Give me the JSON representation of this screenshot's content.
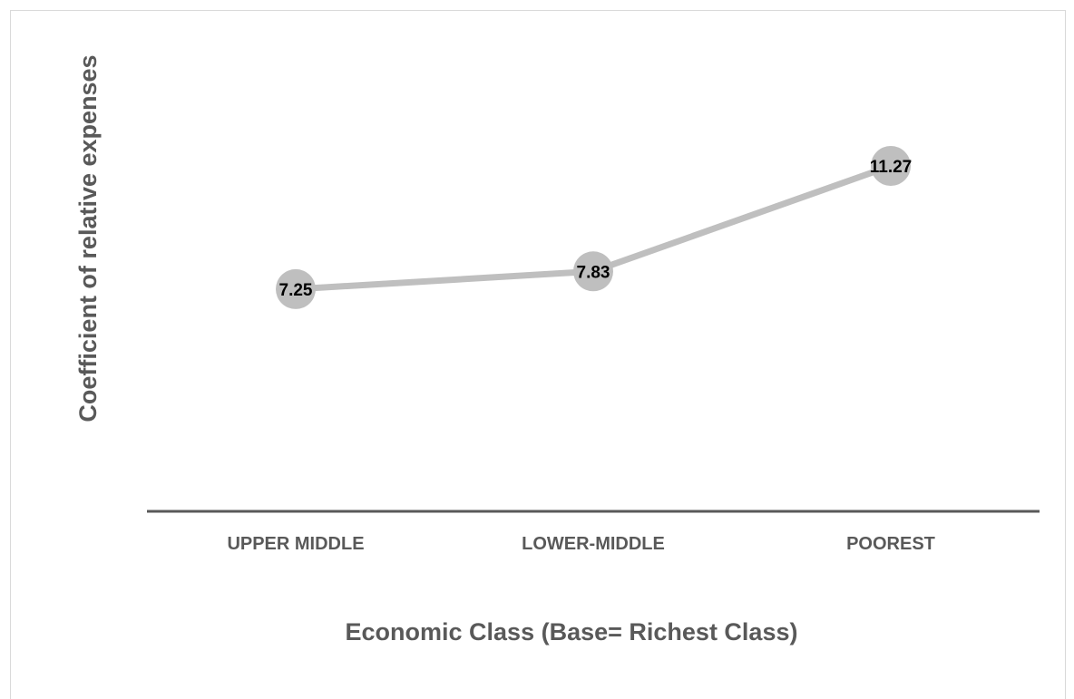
{
  "chart_data": {
    "type": "line",
    "title": "",
    "xlabel": "Economic Class (Base= Richest Class)",
    "ylabel": "Coefficient of relative expenses",
    "categories": [
      "UPPER MIDDLE",
      "LOWER-MIDDLE",
      "POOREST"
    ],
    "series": [
      {
        "values": [
          7.25,
          7.83,
          11.27
        ],
        "labels": [
          "7.25",
          "7.83",
          "11.27"
        ]
      }
    ],
    "ylim": [
      0,
      15.5
    ],
    "grid": false,
    "legend": "none",
    "colors": {
      "line": "#bfbfbf",
      "marker": "#bfbfbf",
      "axis": "#595959",
      "text": "#595959",
      "data_label": "#000000"
    }
  }
}
